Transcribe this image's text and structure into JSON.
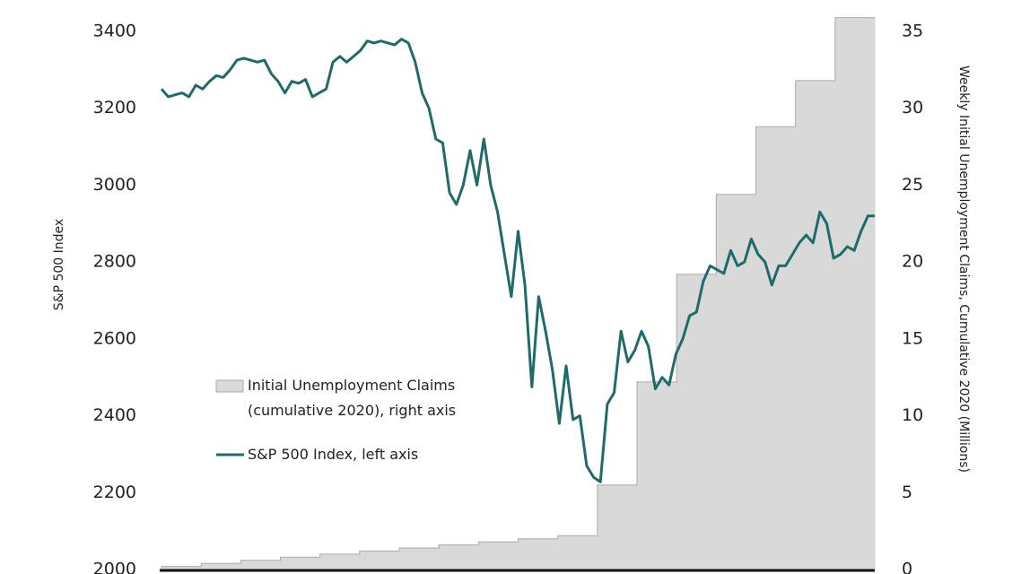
{
  "chart_data": {
    "type": "line",
    "ylabel": "S&P 500 Index",
    "y2label": "Weekly Initial Unemployment Claims, Cumulative 2020 (Millions)",
    "ylim": [
      2000,
      3400
    ],
    "yticks": [
      2000,
      2200,
      2400,
      2600,
      2800,
      3000,
      3200,
      3400
    ],
    "y2lim": [
      0,
      35
    ],
    "y2ticks": [
      0,
      5,
      10,
      15,
      20,
      25,
      30,
      35
    ],
    "series": [
      {
        "name": "Initial Unemployment Claims (cumulative 2020), right axis",
        "type": "step-area",
        "axis": "y2",
        "color": "#d9d9d9",
        "values": [
          0.2,
          0.4,
          0.6,
          0.8,
          1.0,
          1.2,
          1.4,
          1.6,
          1.8,
          2.0,
          2.2,
          5.5,
          12.2,
          19.2,
          24.4,
          28.8,
          31.8,
          35.9
        ]
      },
      {
        "name": "S&P 500 Index, left axis",
        "type": "line",
        "axis": "y",
        "color": "#1f6b6b",
        "values": [
          3250,
          3230,
          3235,
          3240,
          3230,
          3260,
          3250,
          3270,
          3285,
          3280,
          3300,
          3325,
          3330,
          3325,
          3320,
          3325,
          3290,
          3270,
          3240,
          3270,
          3265,
          3275,
          3230,
          3240,
          3250,
          3320,
          3335,
          3320,
          3335,
          3350,
          3375,
          3370,
          3375,
          3370,
          3365,
          3380,
          3370,
          3320,
          3240,
          3200,
          3120,
          3110,
          2980,
          2950,
          3000,
          3090,
          3000,
          3120,
          3000,
          2930,
          2820,
          2710,
          2880,
          2740,
          2475,
          2710,
          2620,
          2520,
          2380,
          2530,
          2390,
          2400,
          2270,
          2240,
          2228,
          2430,
          2460,
          2620,
          2540,
          2570,
          2620,
          2580,
          2470,
          2500,
          2480,
          2560,
          2600,
          2660,
          2670,
          2750,
          2790,
          2780,
          2770,
          2830,
          2790,
          2800,
          2860,
          2820,
          2800,
          2740,
          2790,
          2790,
          2820,
          2850,
          2870,
          2850,
          2930,
          2900,
          2810,
          2820,
          2840,
          2830,
          2880,
          2920,
          2920
        ]
      }
    ]
  }
}
